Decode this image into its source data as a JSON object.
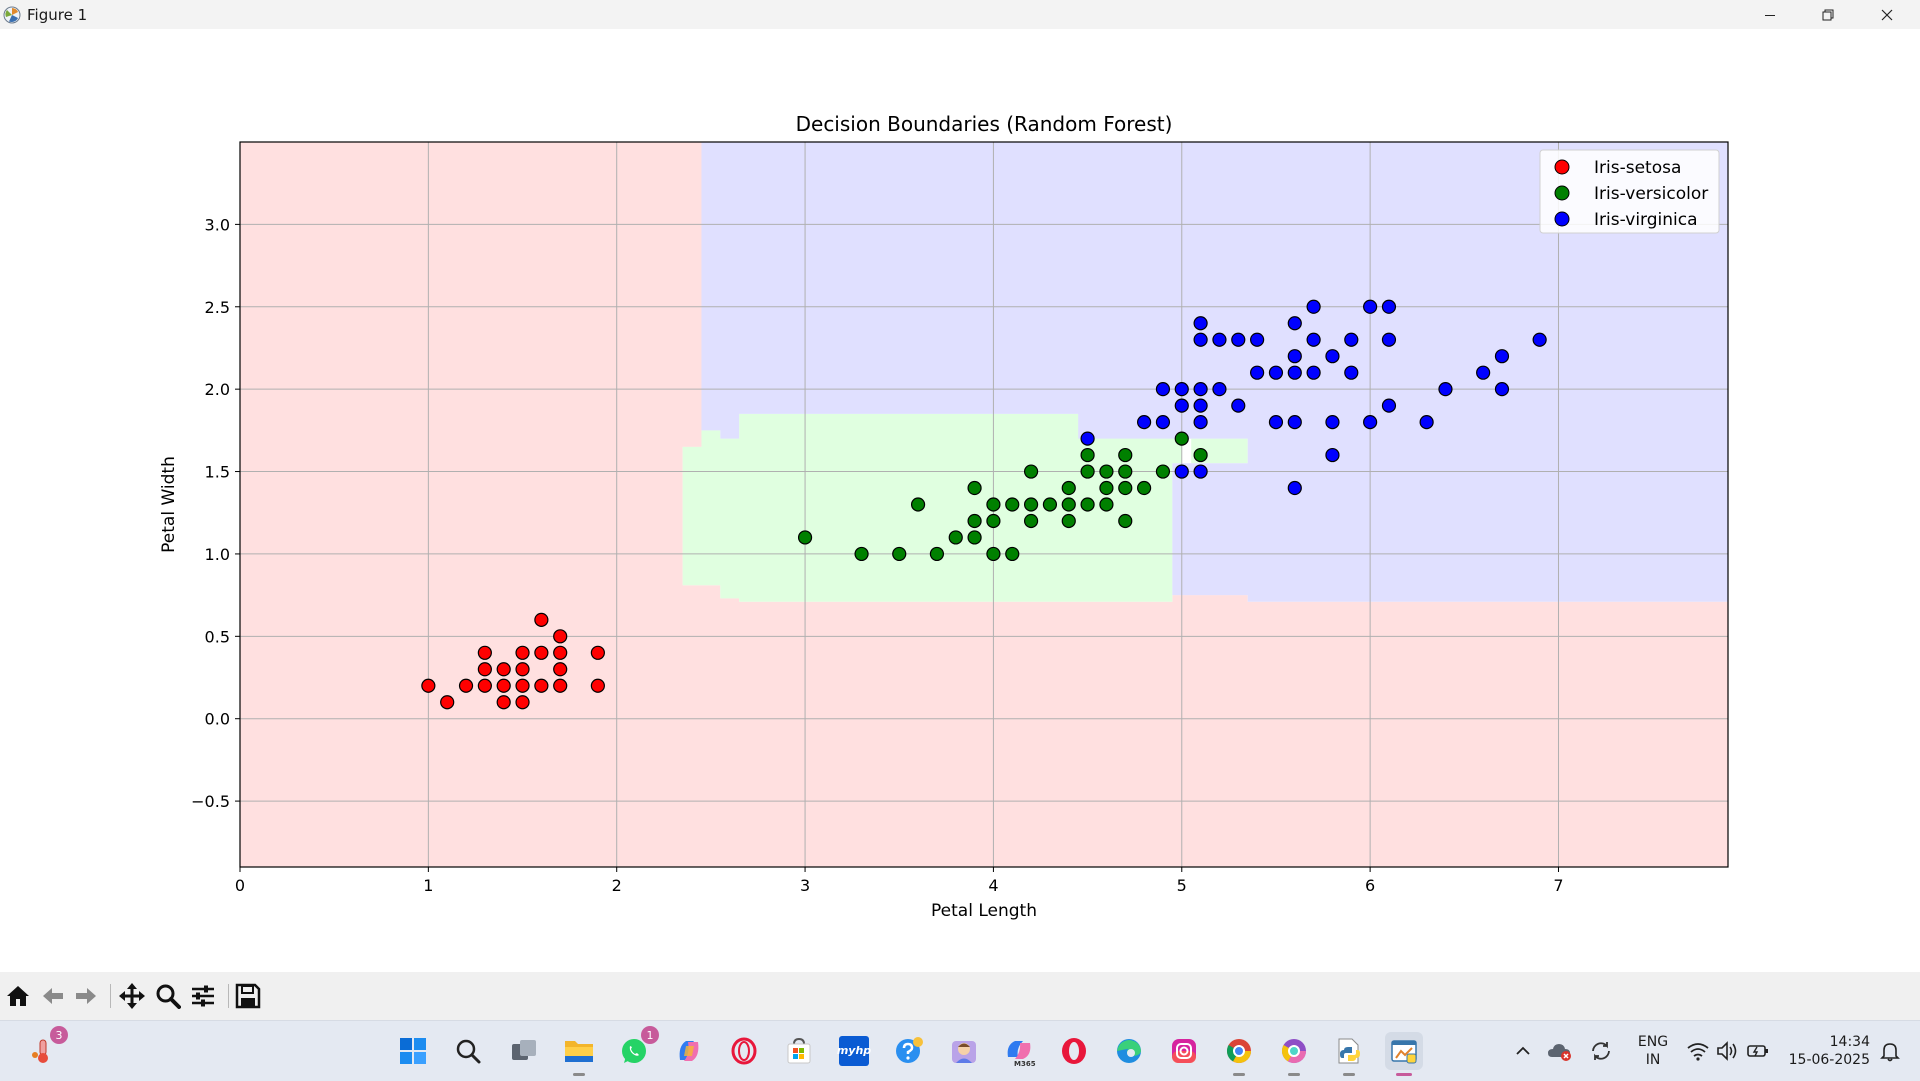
{
  "window": {
    "title": "Figure 1"
  },
  "chart_data": {
    "type": "scatter",
    "title": "Decision Boundaries (Random Forest)",
    "xlabel": "Petal Length",
    "ylabel": "Petal Width",
    "xlim": [
      0,
      7.9
    ],
    "ylim": [
      -0.9,
      3.5
    ],
    "xticks": [
      0,
      1,
      2,
      3,
      4,
      5,
      6,
      7
    ],
    "yticks": [
      -0.5,
      0.0,
      0.5,
      1.0,
      1.5,
      2.0,
      2.5,
      3.0
    ],
    "xtick_labels": [
      "0",
      "1",
      "2",
      "3",
      "4",
      "5",
      "6",
      "7"
    ],
    "ytick_labels": [
      "−0.5",
      "0.0",
      "0.5",
      "1.0",
      "1.5",
      "2.0",
      "2.5",
      "3.0"
    ],
    "grid": true,
    "legend_position": "top-right",
    "regions": [
      {
        "class": "Iris-setosa",
        "color": "#ffe0e0",
        "points": [
          [
            0,
            -0.9
          ],
          [
            7.9,
            -0.9
          ],
          [
            7.9,
            0.71
          ],
          [
            5.35,
            0.71
          ],
          [
            5.35,
            0.75
          ],
          [
            4.95,
            0.75
          ],
          [
            4.95,
            0.71
          ],
          [
            2.65,
            0.71
          ],
          [
            2.65,
            0.73
          ],
          [
            2.55,
            0.73
          ],
          [
            2.55,
            0.81
          ],
          [
            2.35,
            0.81
          ],
          [
            2.35,
            1.65
          ],
          [
            2.45,
            1.65
          ],
          [
            2.45,
            3.5
          ],
          [
            0,
            3.5
          ]
        ]
      },
      {
        "class": "Iris-versicolor",
        "color": "#e0ffe0",
        "points": [
          [
            2.35,
            0.81
          ],
          [
            2.55,
            0.81
          ],
          [
            2.55,
            0.73
          ],
          [
            2.65,
            0.73
          ],
          [
            2.65,
            0.71
          ],
          [
            4.95,
            0.71
          ],
          [
            4.95,
            1.55
          ],
          [
            5.0,
            1.55
          ],
          [
            5.0,
            1.7
          ],
          [
            5.35,
            1.7
          ],
          [
            5.35,
            1.55
          ],
          [
            5.05,
            1.55
          ],
          [
            5.05,
            1.85
          ],
          [
            4.45,
            1.85
          ],
          [
            4.45,
            1.85
          ],
          [
            2.65,
            1.85
          ],
          [
            2.65,
            1.7
          ],
          [
            2.55,
            1.7
          ],
          [
            2.55,
            1.75
          ],
          [
            2.45,
            1.75
          ],
          [
            2.45,
            1.65
          ],
          [
            2.35,
            1.65
          ]
        ]
      },
      {
        "class": "Iris-virginica",
        "color": "#e0e0ff",
        "points": [
          [
            2.45,
            3.5
          ],
          [
            7.9,
            3.5
          ],
          [
            7.9,
            0.71
          ],
          [
            5.35,
            0.71
          ],
          [
            5.35,
            0.75
          ],
          [
            4.95,
            0.75
          ],
          [
            4.95,
            1.55
          ],
          [
            5.35,
            1.55
          ],
          [
            5.35,
            1.7
          ],
          [
            4.45,
            1.7
          ],
          [
            4.45,
            1.85
          ],
          [
            2.65,
            1.85
          ],
          [
            2.65,
            1.7
          ],
          [
            2.55,
            1.7
          ],
          [
            2.55,
            1.75
          ],
          [
            2.45,
            1.75
          ]
        ]
      }
    ],
    "series": [
      {
        "name": "Iris-setosa",
        "color": "#ff0000",
        "points": [
          [
            1.0,
            0.2
          ],
          [
            1.1,
            0.1
          ],
          [
            1.2,
            0.2
          ],
          [
            1.3,
            0.4
          ],
          [
            1.3,
            0.3
          ],
          [
            1.3,
            0.2
          ],
          [
            1.4,
            0.3
          ],
          [
            1.4,
            0.2
          ],
          [
            1.4,
            0.1
          ],
          [
            1.5,
            0.4
          ],
          [
            1.5,
            0.3
          ],
          [
            1.5,
            0.2
          ],
          [
            1.5,
            0.1
          ],
          [
            1.6,
            0.6
          ],
          [
            1.6,
            0.4
          ],
          [
            1.6,
            0.2
          ],
          [
            1.7,
            0.5
          ],
          [
            1.7,
            0.4
          ],
          [
            1.7,
            0.3
          ],
          [
            1.7,
            0.2
          ],
          [
            1.9,
            0.4
          ],
          [
            1.9,
            0.2
          ]
        ]
      },
      {
        "name": "Iris-versicolor",
        "color": "#008000",
        "points": [
          [
            3.0,
            1.1
          ],
          [
            3.3,
            1.0
          ],
          [
            3.5,
            1.0
          ],
          [
            3.6,
            1.3
          ],
          [
            3.7,
            1.0
          ],
          [
            3.8,
            1.1
          ],
          [
            3.9,
            1.4
          ],
          [
            3.9,
            1.2
          ],
          [
            3.9,
            1.1
          ],
          [
            4.0,
            1.3
          ],
          [
            4.0,
            1.2
          ],
          [
            4.0,
            1.0
          ],
          [
            4.1,
            1.3
          ],
          [
            4.1,
            1.0
          ],
          [
            4.2,
            1.5
          ],
          [
            4.2,
            1.3
          ],
          [
            4.2,
            1.2
          ],
          [
            4.3,
            1.3
          ],
          [
            4.4,
            1.4
          ],
          [
            4.4,
            1.3
          ],
          [
            4.4,
            1.2
          ],
          [
            4.5,
            1.6
          ],
          [
            4.5,
            1.5
          ],
          [
            4.5,
            1.3
          ],
          [
            4.6,
            1.5
          ],
          [
            4.6,
            1.4
          ],
          [
            4.6,
            1.3
          ],
          [
            4.7,
            1.6
          ],
          [
            4.7,
            1.5
          ],
          [
            4.7,
            1.4
          ],
          [
            4.7,
            1.2
          ],
          [
            4.8,
            1.4
          ],
          [
            4.9,
            1.5
          ],
          [
            5.0,
            1.7
          ],
          [
            5.1,
            1.6
          ]
        ]
      },
      {
        "name": "Iris-virginica",
        "color": "#0000ff",
        "points": [
          [
            4.5,
            1.7
          ],
          [
            4.8,
            1.8
          ],
          [
            4.9,
            2.0
          ],
          [
            4.9,
            1.8
          ],
          [
            5.0,
            2.0
          ],
          [
            5.0,
            1.9
          ],
          [
            5.0,
            1.5
          ],
          [
            5.1,
            2.4
          ],
          [
            5.1,
            2.3
          ],
          [
            5.1,
            2.0
          ],
          [
            5.1,
            1.9
          ],
          [
            5.1,
            1.8
          ],
          [
            5.1,
            1.5
          ],
          [
            5.2,
            2.3
          ],
          [
            5.2,
            2.0
          ],
          [
            5.3,
            2.3
          ],
          [
            5.3,
            1.9
          ],
          [
            5.4,
            2.3
          ],
          [
            5.4,
            2.1
          ],
          [
            5.5,
            2.1
          ],
          [
            5.5,
            1.8
          ],
          [
            5.6,
            2.4
          ],
          [
            5.6,
            2.2
          ],
          [
            5.6,
            2.1
          ],
          [
            5.6,
            1.8
          ],
          [
            5.6,
            1.4
          ],
          [
            5.7,
            2.5
          ],
          [
            5.7,
            2.3
          ],
          [
            5.7,
            2.1
          ],
          [
            5.8,
            2.2
          ],
          [
            5.8,
            1.8
          ],
          [
            5.8,
            1.6
          ],
          [
            5.9,
            2.3
          ],
          [
            5.9,
            2.1
          ],
          [
            6.0,
            2.5
          ],
          [
            6.0,
            1.8
          ],
          [
            6.1,
            2.5
          ],
          [
            6.1,
            2.3
          ],
          [
            6.1,
            1.9
          ],
          [
            6.3,
            1.8
          ],
          [
            6.4,
            2.0
          ],
          [
            6.6,
            2.1
          ],
          [
            6.7,
            2.2
          ],
          [
            6.7,
            2.0
          ],
          [
            6.9,
            2.3
          ]
        ]
      }
    ]
  },
  "toolbar": {
    "icons": [
      "home-icon",
      "back-icon",
      "forward-icon",
      "pan-icon",
      "zoom-icon",
      "configure-subplots-icon",
      "save-icon"
    ]
  },
  "taskbar": {
    "weather_badge": "3",
    "whatsapp_badge": "1",
    "hp_label": "myhp",
    "m365_label": "M365",
    "lang_top": "ENG",
    "lang_bottom": "IN",
    "time": "14:34",
    "date": "15-06-2025"
  }
}
